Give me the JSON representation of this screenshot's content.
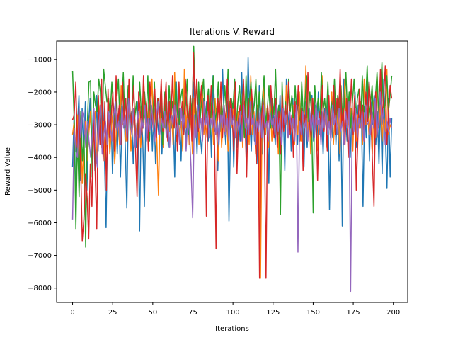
{
  "chart_data": {
    "type": "line",
    "title": "Iterations V. Reward",
    "xlabel": "Iterations",
    "ylabel": "Reward Value",
    "xlim": [
      -9.95,
      208.95
    ],
    "ylim": [
      -8440,
      -440
    ],
    "xticks": [
      0,
      25,
      50,
      75,
      100,
      125,
      150,
      175,
      200
    ],
    "yticks": [
      -8000,
      -7000,
      -6000,
      -5000,
      -4000,
      -3000,
      -2000,
      -1000
    ],
    "xtick_labels": [
      "0",
      "25",
      "50",
      "75",
      "100",
      "125",
      "150",
      "175",
      "200"
    ],
    "ytick_labels": [
      "−8000",
      "−7000",
      "−6000",
      "−5000",
      "−4000",
      "−3000",
      "−2000",
      "−1000"
    ],
    "grid": false,
    "legend": "none",
    "x_start": 0,
    "x_end": 199,
    "series": [
      {
        "color": "#1f77b4",
        "values": [
          -4300,
          -2600,
          -5600,
          -3100,
          -2100,
          -4700,
          -2500,
          -3900,
          -2300,
          -5000,
          -3000,
          -2200,
          -3700,
          -2500,
          -4400,
          -2100,
          -3800,
          -2700,
          -3300,
          -2300,
          -4000,
          -6150,
          -2600,
          -3500,
          -2400,
          -4500,
          -3000,
          -2300,
          -3900,
          -2500,
          -4600,
          -2800,
          -2300,
          -3600,
          -5550,
          -2200,
          -3200,
          -2600,
          -4200,
          -2800,
          -3700,
          -2300,
          -6250,
          -2600,
          -3500,
          -5500,
          -2400,
          -3400,
          -3000,
          -2200,
          -3800,
          -2500,
          -4200,
          -2700,
          -3300,
          -2400,
          -3900,
          -2600,
          -3100,
          -2300,
          -3700,
          -2500,
          -3100,
          -2700,
          -4600,
          -1700,
          -3000,
          -2500,
          -4100,
          -2300,
          -2800,
          -3600,
          -2400,
          -3300,
          -2200,
          -3000,
          -1700,
          -2600,
          -3900,
          -2100,
          -3300,
          -3900,
          -2200,
          -2800,
          -2300,
          -3500,
          -2400,
          -4000,
          -1500,
          -3200,
          -2500,
          -4400,
          -2700,
          -3200,
          -1300,
          -2900,
          -3600,
          -2300,
          -5950,
          -3100,
          -2400,
          -4300,
          -2200,
          -3700,
          -2600,
          -3500,
          -1400,
          -3000,
          -2300,
          -4100,
          -950,
          -2800,
          -3800,
          -2200,
          -3500,
          -2400,
          -4200,
          -1800,
          -2700,
          -3900,
          -2100,
          -3300,
          -2500,
          -4800,
          -1900,
          -3100,
          -2700,
          -3600,
          -2400,
          -3300,
          -2100,
          -3800,
          -2500,
          -4400,
          -1600,
          -3100,
          -2400,
          -3800,
          -2200,
          -3300,
          -2600,
          -3600,
          -2000,
          -3400,
          -2500,
          -4300,
          -2300,
          -3700,
          -2600,
          -3200,
          -2100,
          -3500,
          -2400,
          -3800,
          -2000,
          -3300,
          -2600,
          -3900,
          -2500,
          -3100,
          -2200,
          -5600,
          -2800,
          -3400,
          -1800,
          -3600,
          -2500,
          -4100,
          -2200,
          -6100,
          -1600,
          -2700,
          -3500,
          -2300,
          -4000,
          -2600,
          -3300,
          -2000,
          -3700,
          -2400,
          -3100,
          -2700,
          -5500,
          -2500,
          -3400,
          -1700,
          -4100,
          -2300,
          -3000,
          -2100,
          -3600,
          -2600,
          -4200,
          -2300,
          -4500,
          -1600,
          -3300,
          -4950,
          -2200,
          -4600,
          -2800
        ]
      },
      {
        "color": "#ff7f0e",
        "values": [
          -3300,
          -2900,
          -3800,
          -2700,
          -4300,
          -3100,
          -4800,
          -3500,
          -2900,
          -4100,
          -3300,
          -2600,
          -3800,
          -3000,
          -2600,
          -4200,
          -3100,
          -2400,
          -3700,
          -2900,
          -4100,
          -3400,
          -2800,
          -3900,
          -3100,
          -2500,
          -4200,
          -3200,
          -2700,
          -3600,
          -1800,
          -3000,
          -2400,
          -3500,
          -2900,
          -2400,
          -3800,
          -3100,
          -2600,
          -3300,
          -3000,
          -2500,
          -3700,
          -3100,
          -1700,
          -3000,
          -3300,
          -2400,
          -2800,
          -1600,
          -3200,
          -2500,
          -3500,
          -5150,
          -2800,
          -2500,
          -3700,
          -2200,
          -3300,
          -2600,
          -3200,
          -2500,
          -3600,
          -1400,
          -3500,
          -2800,
          -3300,
          -2900,
          -3800,
          -1300,
          -3100,
          -2400,
          -3600,
          -2600,
          -3900,
          -2200,
          -3200,
          -2400,
          -3600,
          -2600,
          -1700,
          -3300,
          -2900,
          -3400,
          -2300,
          -3000,
          -2500,
          -3600,
          -2200,
          -3300,
          -4100,
          -2400,
          -3700,
          -2700,
          -3200,
          -2500,
          -3800,
          -2300,
          -3100,
          -2700,
          -1700,
          -3500,
          -2600,
          -3000,
          -2300,
          -3700,
          -2500,
          -3100,
          -2800,
          -3600,
          -1500,
          -3300,
          -2600,
          -3900,
          -2400,
          -3200,
          -7700,
          -2500,
          -1800,
          -3300,
          -2500,
          -3700,
          -2300,
          -3500,
          -2800,
          -3300,
          -2200,
          -3900,
          -2600,
          -3200,
          -2500,
          -3000,
          -1800,
          -3400,
          -2700,
          -3100,
          -2400,
          -3600,
          -2800,
          -3300,
          -2000,
          -3500,
          -2600,
          -3100,
          -1200,
          -3300,
          -2500,
          -3900,
          -2200,
          -3000,
          -2500,
          -3800,
          -2900,
          -3200,
          -1500,
          -3100,
          -2600,
          -3700,
          -2400,
          -3300,
          -2000,
          -3600,
          -2800,
          -3100,
          -2400,
          -3900,
          -2200,
          -3400,
          -1600,
          -3000,
          -2700,
          -3300,
          -2500,
          -3800,
          -2200,
          -3500,
          -2700,
          -3100,
          -2300,
          -3600,
          -1600,
          -3000,
          -2500,
          -3300,
          -2700,
          -3900,
          -2300,
          -3400,
          -1500,
          -3100,
          -2400,
          -3500,
          -2800,
          -3200,
          -1300,
          -3300,
          -3000,
          -3100
        ]
      },
      {
        "color": "#2ca02c",
        "values": [
          -1350,
          -2900,
          -6200,
          -3300,
          -5200,
          -2600,
          -4100,
          -3300,
          -6750,
          -3000,
          -1700,
          -1650,
          -4600,
          -2000,
          -2400,
          -2600,
          -1600,
          -2000,
          -3600,
          -1300,
          -1800,
          -2300,
          -2200,
          -2700,
          -1700,
          -2500,
          -3100,
          -2200,
          -1600,
          -3000,
          -2400,
          -1400,
          -3100,
          -2700,
          -1800,
          -2500,
          -3200,
          -1500,
          -2800,
          -2300,
          -3300,
          -1700,
          -2600,
          -3100,
          -2000,
          -2800,
          -1500,
          -3500,
          -2400,
          -2900,
          -1700,
          -3300,
          -2200,
          -2700,
          -1900,
          -3600,
          -2000,
          -2800,
          -3300,
          -1800,
          -2700,
          -2300,
          -3100,
          -1700,
          -2600,
          -3000,
          -2200,
          -1900,
          -2900,
          -2400,
          -1600,
          -3300,
          -2100,
          -2700,
          -600,
          -2300,
          -3200,
          -1700,
          -2800,
          -2200,
          -1600,
          -3000,
          -2400,
          -1900,
          -3300,
          -2200,
          -1500,
          -2900,
          -2600,
          -1700,
          -3200,
          -2300,
          -2800,
          -1800,
          -2600,
          -1300,
          -2900,
          -2200,
          -2500,
          -1600,
          -3000,
          -2300,
          -1800,
          -2700,
          -2000,
          -3400,
          -1500,
          -2900,
          -2300,
          -1700,
          -2800,
          -2400,
          -1600,
          -3100,
          -2000,
          -2900,
          -2200,
          -1500,
          -3000,
          -2500,
          -1800,
          -3100,
          -2200,
          -2700,
          -1300,
          -2900,
          -2400,
          -5750,
          -1700,
          -3000,
          -2300,
          -2900,
          -1600,
          -2600,
          -2100,
          -3100,
          -1800,
          -2700,
          -2200,
          -3200,
          -1700,
          -2800,
          -2300,
          -1500,
          -2900,
          -2000,
          -2600,
          -5700,
          -1800,
          -2700,
          -2200,
          -3000,
          -1400,
          -2600,
          -2200,
          -2900,
          -1700,
          -3100,
          -2300,
          -2700,
          -1600,
          -3000,
          -2100,
          -2600,
          -1800,
          -2900,
          -2400,
          -1400,
          -2700,
          -2000,
          -3100,
          -2300,
          -1600,
          -2800,
          -2200,
          -1900,
          -3000,
          -1500,
          -2600,
          -2300,
          -1200,
          -2800,
          -2400,
          -1800,
          -3000,
          -2200,
          -1400,
          -2700,
          -2100,
          -1100,
          -2800,
          -2300,
          -1500,
          -2600,
          -2100,
          -1500
        ]
      },
      {
        "color": "#d62728",
        "values": [
          -2850,
          -2700,
          -1700,
          -3700,
          -2500,
          -4200,
          -6550,
          -5900,
          -4500,
          -5200,
          -6500,
          -4200,
          -5500,
          -2800,
          -4400,
          -6200,
          -2100,
          -3600,
          -1600,
          -4100,
          -2300,
          -5000,
          -1900,
          -3400,
          -2700,
          -2000,
          -3800,
          -1500,
          -3000,
          -2400,
          -3600,
          -1700,
          -2900,
          -2200,
          -3500,
          -1600,
          -3100,
          -2500,
          -1800,
          -3700,
          -5200,
          -2000,
          -2600,
          -3300,
          -1500,
          -2800,
          -2300,
          -3800,
          -1700,
          -2600,
          -3100,
          -1900,
          -3400,
          -2200,
          -2800,
          -1600,
          -3200,
          -2500,
          -1700,
          -3500,
          -2300,
          -2900,
          -1500,
          -3100,
          -2300,
          -3800,
          -1700,
          -2900,
          -2300,
          -3300,
          -1600,
          -2600,
          -3000,
          -2100,
          -3500,
          -800,
          -2700,
          -1600,
          -3200,
          -2400,
          -1800,
          -3200,
          -2400,
          -5800,
          -2100,
          -3000,
          -1800,
          -2600,
          -3300,
          -6800,
          -2200,
          -2900,
          -1700,
          -3400,
          -2400,
          -3000,
          -1600,
          -3300,
          -2200,
          -2600,
          -3800,
          -1700,
          -4500,
          -2800,
          -2400,
          -3200,
          -1600,
          -2900,
          -4600,
          -2200,
          -3300,
          -1900,
          -2700,
          -3100,
          -4200,
          -2500,
          -7700,
          -2900,
          -2300,
          -3200,
          -7700,
          -2400,
          -3000,
          -1800,
          -2700,
          -3400,
          -2200,
          -3700,
          -2600,
          -3900,
          -2100,
          -3200,
          -2400,
          -3000,
          -1700,
          -3300,
          -2700,
          -4000,
          -2300,
          -2900,
          -1800,
          -3500,
          -2500,
          -4400,
          -2700,
          -3100,
          -1400,
          -2900,
          -3400,
          -2200,
          -3100,
          -2500,
          -4700,
          -2600,
          -3000,
          -1800,
          -3200,
          -2500,
          -3800,
          -2100,
          -3400,
          -2700,
          -1800,
          -3300,
          -2200,
          -2800,
          -1300,
          -3000,
          -2500,
          -3600,
          -2200,
          -4000,
          -2700,
          -1600,
          -3300,
          -2100,
          -5000,
          -3400,
          -1900,
          -2900,
          -2400,
          -3500,
          -2000,
          -2900,
          -1700,
          -2500,
          -4100,
          -5500,
          -2000,
          -3300,
          -2700,
          -1300,
          -2800,
          -2100,
          -1200,
          -3600,
          -2600,
          -1800,
          -2200
        ]
      },
      {
        "color": "#9467bd",
        "values": [
          -5900,
          -3100,
          -3800,
          -4000,
          -2500,
          -3400,
          -2600,
          -2800,
          -3700,
          -2900,
          -3500,
          -4000,
          -3300,
          -2500,
          -3700,
          -4300,
          -3100,
          -2400,
          -3900,
          -3300,
          -2900,
          -3600,
          -2600,
          -3100,
          -3500,
          -2700,
          -2300,
          -3200,
          -2900,
          -3600,
          -2400,
          -3100,
          -2700,
          -3400,
          -2200,
          -2900,
          -3300,
          -2500,
          -3700,
          -3000,
          -2600,
          -3400,
          -2800,
          -3100,
          -2400,
          -3500,
          -2800,
          -3200,
          -2400,
          -3000,
          -3500,
          -2700,
          -2300,
          -3300,
          -2800,
          -3100,
          -2600,
          -3400,
          -2900,
          -3700,
          -2700,
          -3000,
          -2400,
          -3300,
          -2900,
          -3600,
          -2500,
          -3100,
          -2700,
          -3800,
          -2800,
          -3200,
          -4300,
          -5850,
          -2700,
          -3400,
          -2400,
          -3100,
          -2800,
          -3500,
          -2300,
          -3000,
          -2600,
          -3400,
          -2800,
          -3100,
          -2500,
          -3300,
          -2900,
          -3600,
          -2700,
          -3100,
          -2400,
          -3300,
          -2800,
          -3500,
          -2500,
          -3000,
          -2700,
          -3400,
          -2900,
          -3200,
          -2600,
          -3500,
          -2400,
          -3100,
          -2800,
          -3300,
          -2300,
          -3000,
          -2700,
          -3600,
          -2900,
          -3200,
          -2600,
          -3400,
          -2400,
          -3100,
          -2900,
          -3500,
          -2600,
          -3000,
          -2800,
          -3300,
          -2400,
          -3200,
          -2800,
          -3600,
          -2500,
          -3000,
          -2700,
          -3400,
          -2600,
          -3100,
          -2800,
          -3500,
          -2400,
          -6900,
          -2900,
          -3300,
          -2600,
          -3100,
          -2800,
          -3500,
          -2500,
          -3200,
          -2700,
          -3400,
          -2300,
          -3000,
          -2800,
          -3600,
          -2600,
          -3100,
          -2500,
          -3300,
          -2900,
          -3500,
          -2400,
          -3000,
          -2700,
          -3300,
          -2500,
          -3200,
          -2900,
          -3600,
          -2600,
          -3100,
          -2300,
          -8100,
          -2700,
          -3200,
          -2500,
          -3400,
          -2800,
          -3100,
          -2600,
          -3500,
          -2400,
          -3000,
          -2900,
          -3300,
          -2600,
          -3100,
          -2200,
          -3400,
          -2700,
          -2000,
          -3000,
          -2500,
          -3600,
          -2900,
          -3200,
          -2800,
          -3100
        ]
      }
    ]
  }
}
